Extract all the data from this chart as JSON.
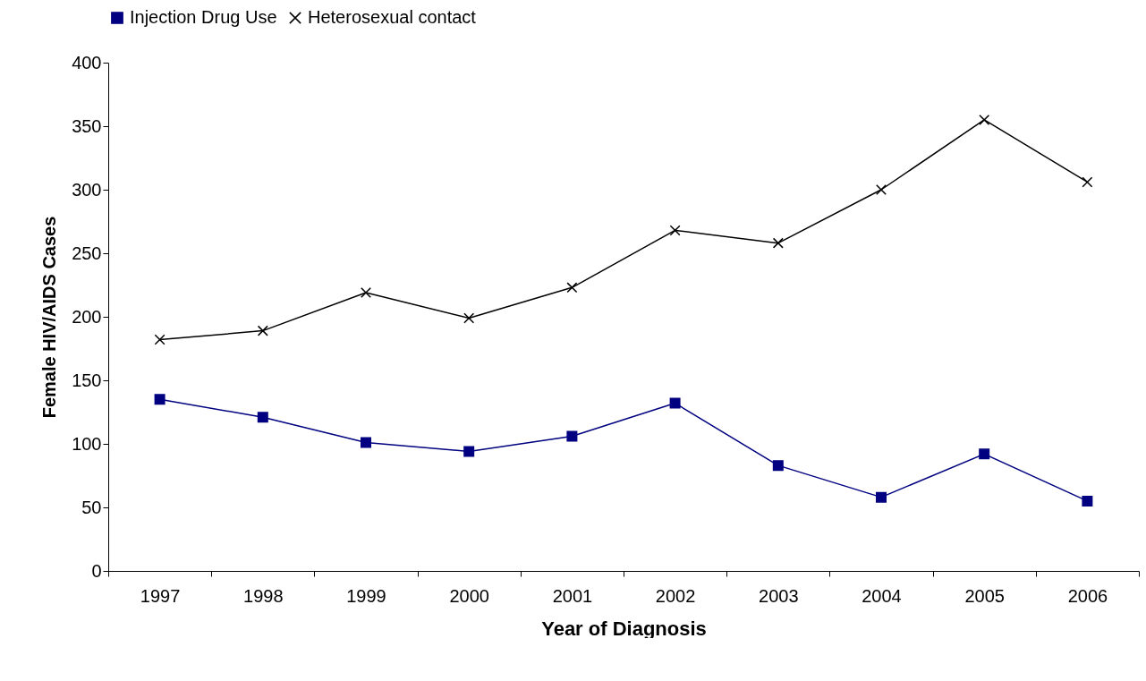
{
  "chart_data": {
    "type": "line",
    "xlabel": "Year of Diagnosis",
    "ylabel": "Female HIV/AIDS Cases",
    "categories": [
      "1997",
      "1998",
      "1999",
      "2000",
      "2001",
      "2002",
      "2003",
      "2004",
      "2005",
      "2006"
    ],
    "series": [
      {
        "name": "Injection Drug Use",
        "color": "#000080",
        "marker": "square",
        "values": [
          135,
          121,
          101,
          94,
          106,
          132,
          83,
          58,
          92,
          55
        ]
      },
      {
        "name": "Heterosexual contact",
        "color": "#000000",
        "marker": "cross",
        "values": [
          182,
          189,
          219,
          199,
          223,
          268,
          258,
          300,
          355,
          306
        ]
      }
    ],
    "ylim": [
      0,
      400
    ],
    "yticks": [
      0,
      50,
      100,
      150,
      200,
      250,
      300,
      350,
      400
    ],
    "grid": false,
    "legend": "top"
  }
}
